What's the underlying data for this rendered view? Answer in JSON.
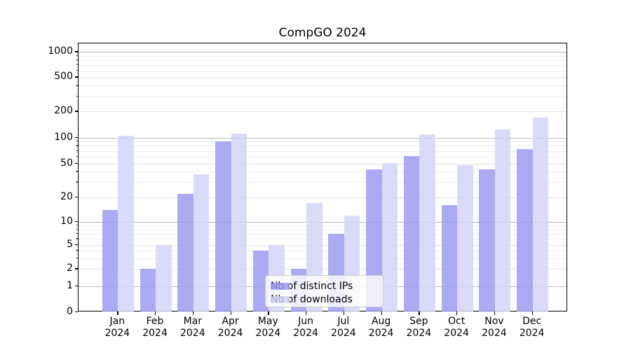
{
  "chart_data": {
    "type": "bar",
    "title": "CompGO 2024",
    "categories": [
      "Jan 2024",
      "Feb 2024",
      "Mar 2024",
      "Apr 2024",
      "May 2024",
      "Jun 2024",
      "Jul 2024",
      "Aug 2024",
      "Sep 2024",
      "Oct 2024",
      "Nov 2024",
      "Dec 2024"
    ],
    "series": [
      {
        "name": "Nb of distinct IPs",
        "color": "#9898f2",
        "values": [
          14,
          2,
          22,
          90,
          4,
          2,
          7,
          43,
          61,
          16,
          43,
          73
        ]
      },
      {
        "name": "Nb of downloads",
        "color": "#d2d2f8",
        "values": [
          105,
          5,
          37,
          111,
          5,
          17,
          12,
          51,
          109,
          48,
          123,
          171
        ]
      }
    ],
    "y_axis": {
      "scale": "symlog",
      "tick_labels": [
        0,
        1,
        2,
        5,
        10,
        20,
        50,
        100,
        200,
        500,
        1000
      ],
      "major_gridlines": [
        1,
        10,
        100,
        1000
      ],
      "minor_gridlines_labeled": [
        2,
        5,
        20,
        50,
        200,
        500
      ],
      "minor_gridlines": [
        3,
        4,
        6,
        7,
        8,
        9,
        30,
        40,
        60,
        70,
        80,
        90,
        300,
        400,
        600,
        700,
        800,
        900
      ],
      "range": [
        0,
        1000
      ]
    },
    "legend": {
      "position": "lower-center-inside",
      "grid": true
    }
  }
}
